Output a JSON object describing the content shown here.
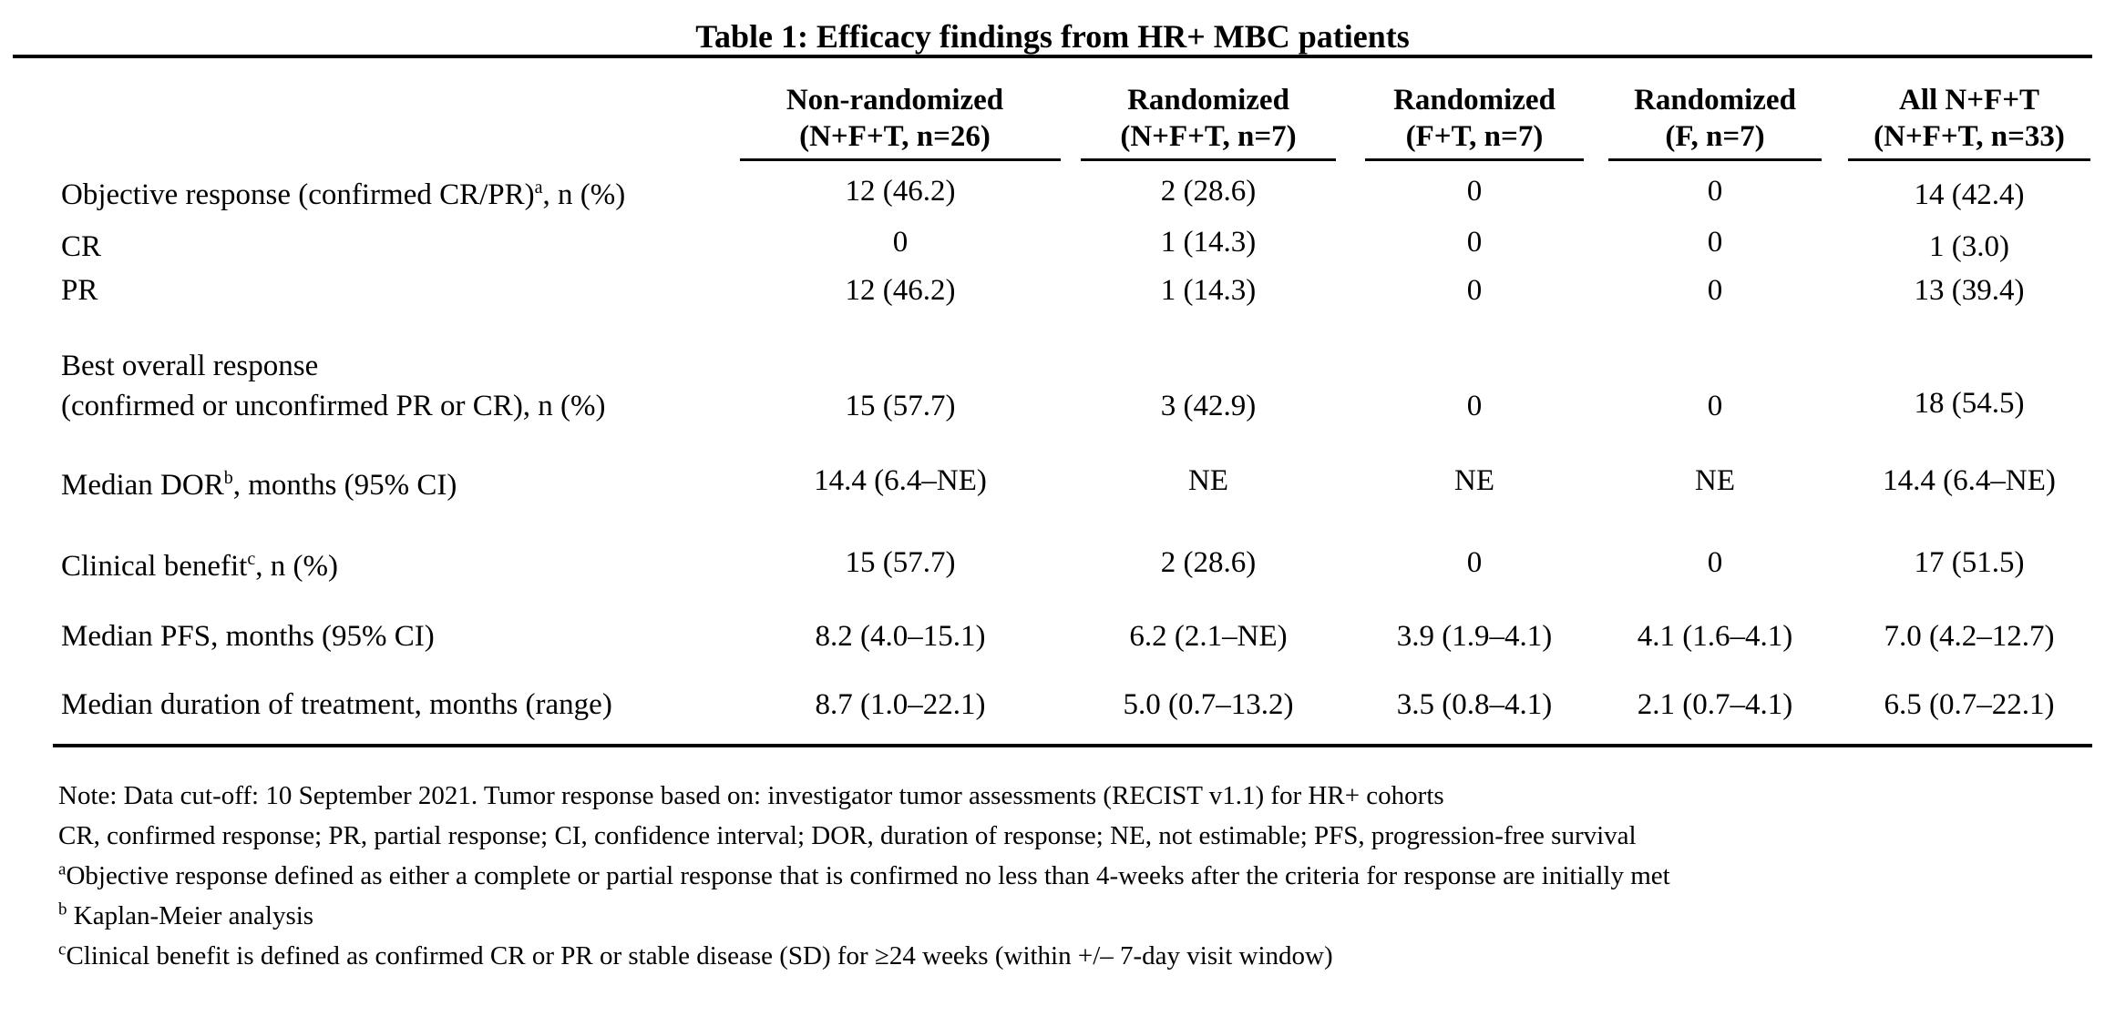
{
  "table": {
    "title": "Table 1: Efficacy findings from HR+ MBC patients",
    "columns": [
      {
        "line1": "Non-randomized",
        "line2": "(N+F+T, n=26)"
      },
      {
        "line1": "Randomized",
        "line2": "(N+F+T, n=7)"
      },
      {
        "line1": "Randomized",
        "line2": "(F+T, n=7)"
      },
      {
        "line1": "Randomized",
        "line2": "(F, n=7)"
      },
      {
        "line1": "All N+F+T",
        "line2": "(N+F+T, n=33)"
      }
    ],
    "rows": [
      {
        "label": "Objective response (confirmed CR/PR)",
        "sup": "a",
        "label_suffix": ", n (%)",
        "values": [
          "12 (46.2)",
          "2 (28.6)",
          "0",
          "0",
          "14 (42.4)"
        ]
      },
      {
        "label": "CR",
        "sup": "",
        "label_suffix": "",
        "values": [
          "0",
          "1 (14.3)",
          "0",
          "0",
          "1 (3.0)"
        ]
      },
      {
        "label": "PR",
        "sup": "",
        "label_suffix": "",
        "values": [
          "12 (46.2)",
          "1 (14.3)",
          "0",
          "0",
          "13 (39.4)"
        ]
      },
      {
        "label": "Best overall response",
        "label2": "(confirmed or unconfirmed PR or CR), n (%)",
        "values": [
          "15 (57.7)",
          "3 (42.9)",
          "0",
          "0",
          "18 (54.5)"
        ]
      },
      {
        "label": "Median DOR",
        "sup": "b",
        "label_suffix": ", months (95% CI)",
        "values": [
          "14.4 (6.4–NE)",
          "NE",
          "NE",
          "NE",
          "14.4 (6.4–NE)"
        ]
      },
      {
        "label": "Clinical benefit",
        "sup": "c",
        "label_suffix": ", n (%)",
        "values": [
          "15 (57.7)",
          "2 (28.6)",
          "0",
          "0",
          "17 (51.5)"
        ]
      },
      {
        "label": "Median PFS, months (95% CI)",
        "sup": "",
        "label_suffix": "",
        "values": [
          "8.2 (4.0–15.1)",
          "6.2 (2.1–NE)",
          "3.9 (1.9–4.1)",
          "4.1 (1.6–4.1)",
          "7.0 (4.2–12.7)"
        ]
      },
      {
        "label": "Median duration of treatment, months (range)",
        "sup": "",
        "label_suffix": "",
        "values": [
          "8.7 (1.0–22.1)",
          "5.0 (0.7–13.2)",
          "3.5 (0.8–4.1)",
          "2.1 (0.7–4.1)",
          "6.5 (0.7–22.1)"
        ]
      }
    ]
  },
  "notes": {
    "line1": "Note:  Data cut-off: 10 September 2021. Tumor response based on: investigator tumor assessments (RECIST v1.1) for HR+ cohorts",
    "line2": "CR, confirmed response; PR, partial response; CI, confidence interval; DOR, duration of response; NE, not estimable; PFS, progression-free survival",
    "fn_a_mark": "a",
    "fn_a": "Objective response defined as either a complete or partial response that is confirmed no less than 4-weeks after the criteria for response are initially met",
    "fn_b_mark": "b",
    "fn_b": " Kaplan-Meier analysis",
    "fn_c_mark": "c",
    "fn_c": "Clinical benefit is defined as confirmed CR or PR or stable disease (SD) for ≥24 weeks (within +/– 7-day visit window)"
  }
}
